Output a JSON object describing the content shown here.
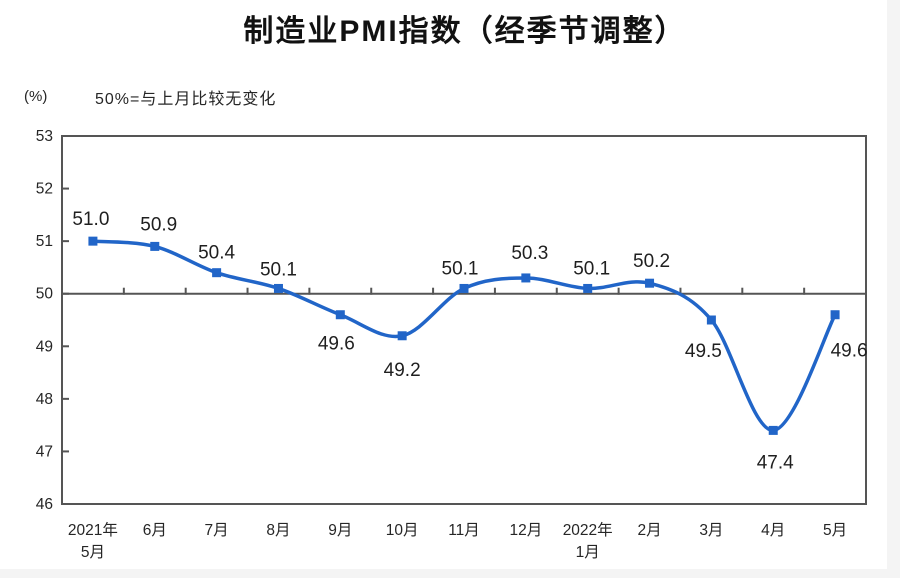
{
  "chart_data": {
    "type": "line",
    "title": "制造业PMI指数（经季节调整）",
    "unit": "(%)",
    "annotation": "50%=与上月比较无变化",
    "categories": [
      [
        "2021年",
        "5月"
      ],
      [
        "6月"
      ],
      [
        "7月"
      ],
      [
        "8月"
      ],
      [
        "9月"
      ],
      [
        "10月"
      ],
      [
        "11月"
      ],
      [
        "12月"
      ],
      [
        "2022年",
        "1月"
      ],
      [
        "2月"
      ],
      [
        "3月"
      ],
      [
        "4月"
      ],
      [
        "5月"
      ]
    ],
    "values": [
      51.0,
      50.9,
      50.4,
      50.1,
      49.6,
      49.2,
      50.1,
      50.3,
      50.1,
      50.2,
      49.5,
      47.4,
      49.6
    ],
    "labels": [
      "51.0",
      "50.9",
      "50.4",
      "50.1",
      "49.6",
      "49.2",
      "50.1",
      "50.3",
      "50.1",
      "50.2",
      "49.5",
      "47.4",
      "49.6"
    ],
    "series_name": "制造业PMI指数",
    "ylim": [
      46,
      53
    ],
    "yticks": [
      53,
      52,
      51,
      50,
      49,
      48,
      47,
      46
    ],
    "reference_value": 50,
    "grid": false,
    "legend": "none",
    "line_style": "smooth",
    "marker": "square"
  },
  "colors": {
    "series_line": "#2165c8",
    "axis_frame": "#555555",
    "tick": "#555555",
    "axis_text": "#262626",
    "data_label_text": "#1f1f1f",
    "title_text": "#111111",
    "background": "#ffffff",
    "gutter": "#f4f4f4"
  }
}
